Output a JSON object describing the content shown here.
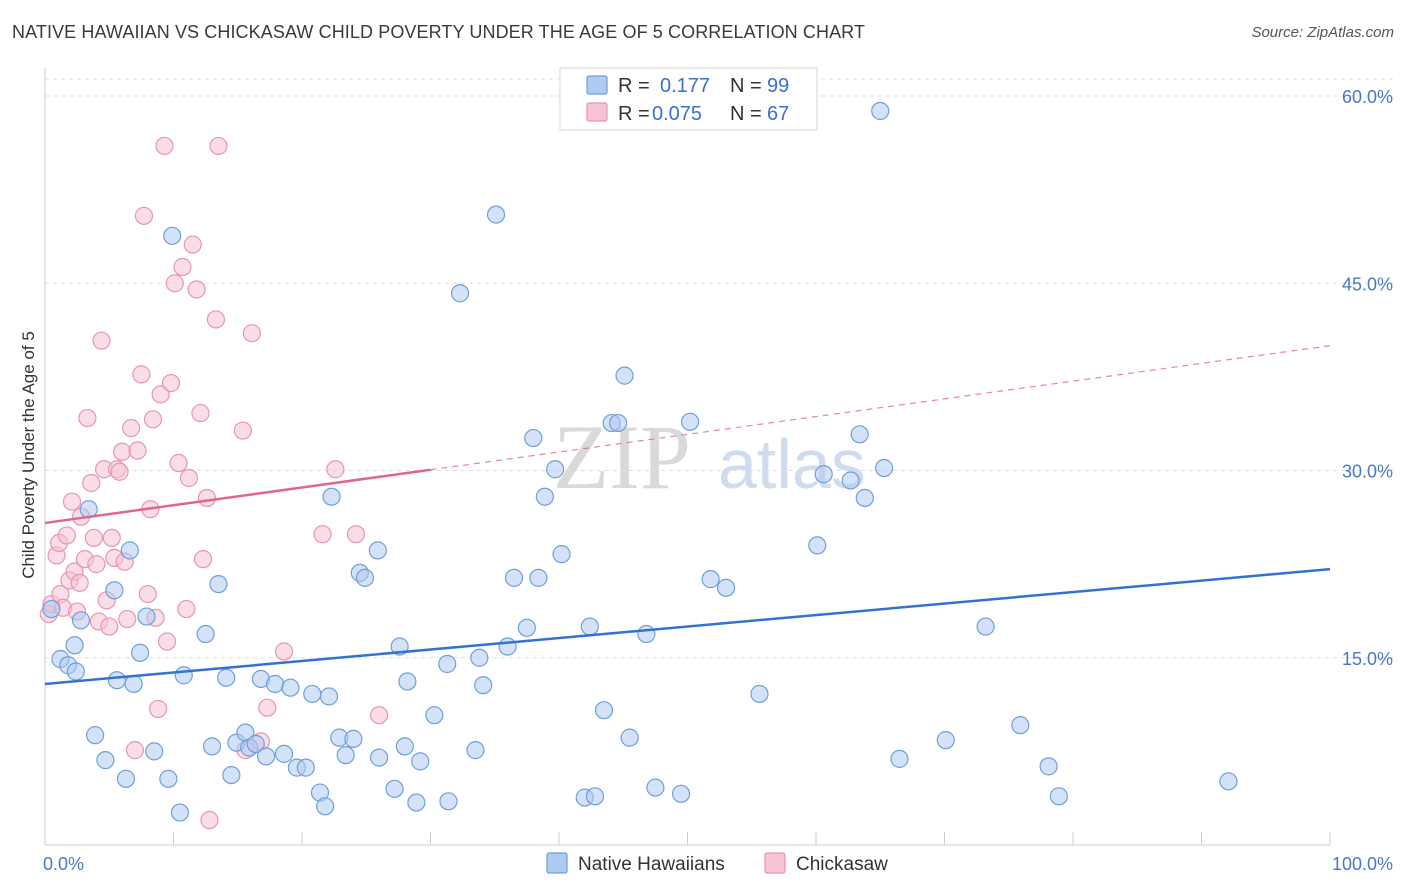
{
  "title": "NATIVE HAWAIIAN VS CHICKASAW CHILD POVERTY UNDER THE AGE OF 5 CORRELATION CHART",
  "source": "Source: ZipAtlas.com",
  "watermark": {
    "zip": "ZIP",
    "atlas": "atlas"
  },
  "colors": {
    "blue_fill": "#aecbf0",
    "blue_stroke": "#6f9fdb",
    "blue_line": "#3472d0",
    "pink_fill": "#f6c3d3",
    "pink_stroke": "#e995b0",
    "pink_line": "#e0668f",
    "grid": "#dddddd",
    "tick": "#4a78c8"
  },
  "legend": {
    "rows": [
      {
        "r_label": "R =",
        "r_value": "0.177",
        "n_label": "N =",
        "n_value": "99"
      },
      {
        "r_label": "R =",
        "r_value": "0.075",
        "n_label": "N =",
        "n_value": "67"
      }
    ]
  },
  "chart_data": {
    "type": "scatter",
    "title": "NATIVE HAWAIIAN VS CHICKASAW CHILD POVERTY UNDER THE AGE OF 5 CORRELATION CHART",
    "xlabel": "",
    "ylabel": "Child Poverty Under the Age of 5",
    "xlim": [
      0,
      100
    ],
    "ylim": [
      0,
      60
    ],
    "x_tick_labels": [
      "0.0%",
      "100.0%"
    ],
    "y_ticks": [
      15,
      30,
      45,
      60
    ],
    "y_tick_labels": [
      "15.0%",
      "30.0%",
      "45.0%",
      "60.0%"
    ],
    "legend_position": "top-center",
    "series": [
      {
        "name": "Native Hawaiians",
        "r": 0.177,
        "n": 99,
        "trend": {
          "x0": 0,
          "y0": 12.9,
          "x1": 100,
          "y1": 22.1,
          "dashed_from": null
        },
        "points": [
          [
            0.5,
            18.9
          ],
          [
            1.2,
            14.9
          ],
          [
            1.8,
            14.4
          ],
          [
            2.4,
            13.9
          ],
          [
            2.3,
            16.0
          ],
          [
            2.8,
            18.0
          ],
          [
            3.4,
            26.9
          ],
          [
            3.9,
            8.8
          ],
          [
            4.7,
            6.8
          ],
          [
            5.4,
            20.4
          ],
          [
            5.6,
            13.2
          ],
          [
            6.3,
            5.3
          ],
          [
            6.6,
            23.6
          ],
          [
            6.9,
            12.9
          ],
          [
            7.4,
            15.4
          ],
          [
            7.9,
            18.3
          ],
          [
            8.5,
            7.5
          ],
          [
            9.6,
            5.3
          ],
          [
            9.9,
            48.8
          ],
          [
            10.5,
            2.6
          ],
          [
            10.8,
            13.6
          ],
          [
            12.5,
            16.9
          ],
          [
            13.0,
            7.9
          ],
          [
            13.5,
            20.9
          ],
          [
            14.1,
            13.4
          ],
          [
            14.5,
            5.6
          ],
          [
            14.9,
            8.2
          ],
          [
            15.6,
            9.0
          ],
          [
            15.9,
            7.8
          ],
          [
            16.4,
            8.1
          ],
          [
            16.8,
            13.3
          ],
          [
            17.2,
            7.1
          ],
          [
            17.9,
            12.9
          ],
          [
            18.6,
            7.3
          ],
          [
            19.1,
            12.6
          ],
          [
            19.6,
            6.2
          ],
          [
            20.3,
            6.2
          ],
          [
            20.8,
            12.1
          ],
          [
            21.4,
            4.2
          ],
          [
            21.8,
            3.1
          ],
          [
            22.1,
            11.9
          ],
          [
            22.3,
            27.9
          ],
          [
            22.9,
            8.6
          ],
          [
            23.4,
            7.2
          ],
          [
            24.0,
            8.5
          ],
          [
            24.5,
            21.8
          ],
          [
            24.9,
            21.4
          ],
          [
            25.9,
            23.6
          ],
          [
            26.0,
            7.0
          ],
          [
            27.2,
            4.5
          ],
          [
            27.6,
            15.9
          ],
          [
            28.0,
            7.9
          ],
          [
            28.2,
            13.1
          ],
          [
            28.9,
            3.4
          ],
          [
            29.2,
            6.7
          ],
          [
            30.3,
            10.4
          ],
          [
            31.4,
            3.5
          ],
          [
            31.3,
            14.5
          ],
          [
            32.3,
            44.2
          ],
          [
            33.5,
            7.6
          ],
          [
            33.8,
            15.0
          ],
          [
            34.1,
            12.8
          ],
          [
            35.1,
            50.5
          ],
          [
            36.0,
            15.9
          ],
          [
            36.5,
            21.4
          ],
          [
            37.5,
            17.4
          ],
          [
            38.0,
            32.6
          ],
          [
            38.4,
            21.4
          ],
          [
            38.9,
            27.9
          ],
          [
            39.7,
            30.1
          ],
          [
            40.2,
            23.3
          ],
          [
            42.0,
            3.8
          ],
          [
            42.4,
            17.5
          ],
          [
            42.8,
            3.9
          ],
          [
            43.5,
            10.8
          ],
          [
            44.1,
            33.8
          ],
          [
            44.6,
            33.8
          ],
          [
            45.1,
            37.6
          ],
          [
            45.5,
            8.6
          ],
          [
            46.8,
            16.9
          ],
          [
            47.5,
            4.6
          ],
          [
            49.5,
            4.1
          ],
          [
            50.2,
            33.9
          ],
          [
            51.8,
            21.3
          ],
          [
            53.0,
            20.6
          ],
          [
            55.6,
            12.1
          ],
          [
            60.1,
            24.0
          ],
          [
            60.6,
            29.7
          ],
          [
            62.7,
            29.2
          ],
          [
            63.4,
            32.9
          ],
          [
            63.8,
            27.8
          ],
          [
            65.3,
            30.2
          ],
          [
            66.5,
            6.9
          ],
          [
            70.1,
            8.4
          ],
          [
            73.2,
            17.5
          ],
          [
            75.9,
            9.6
          ],
          [
            78.1,
            6.3
          ],
          [
            78.9,
            3.9
          ],
          [
            92.1,
            5.1
          ],
          [
            65.0,
            58.8
          ]
        ]
      },
      {
        "name": "Chickasaw",
        "r": 0.075,
        "n": 67,
        "trend": {
          "x0": 0,
          "y0": 25.8,
          "x1": 100,
          "y1": 40.0,
          "dashed_from": 30
        },
        "points": [
          [
            0.3,
            18.5
          ],
          [
            0.5,
            19.3
          ],
          [
            0.9,
            23.2
          ],
          [
            1.1,
            24.2
          ],
          [
            1.2,
            20.1
          ],
          [
            1.4,
            19.0
          ],
          [
            1.7,
            24.8
          ],
          [
            1.9,
            21.2
          ],
          [
            2.1,
            27.5
          ],
          [
            2.3,
            21.9
          ],
          [
            2.5,
            18.7
          ],
          [
            2.7,
            21.0
          ],
          [
            2.8,
            26.3
          ],
          [
            3.1,
            22.9
          ],
          [
            3.3,
            34.2
          ],
          [
            3.6,
            29.0
          ],
          [
            3.8,
            24.6
          ],
          [
            4.0,
            22.5
          ],
          [
            4.2,
            17.9
          ],
          [
            4.4,
            40.4
          ],
          [
            4.6,
            30.1
          ],
          [
            4.8,
            19.6
          ],
          [
            5.0,
            17.5
          ],
          [
            5.2,
            24.6
          ],
          [
            5.4,
            23.0
          ],
          [
            5.6,
            30.1
          ],
          [
            5.8,
            29.9
          ],
          [
            6.0,
            31.5
          ],
          [
            6.2,
            22.7
          ],
          [
            6.4,
            18.1
          ],
          [
            6.7,
            33.4
          ],
          [
            7.0,
            7.6
          ],
          [
            7.2,
            31.6
          ],
          [
            7.5,
            37.7
          ],
          [
            7.7,
            50.4
          ],
          [
            8.0,
            20.1
          ],
          [
            8.2,
            26.9
          ],
          [
            8.4,
            34.1
          ],
          [
            8.6,
            18.2
          ],
          [
            8.8,
            10.9
          ],
          [
            9.0,
            36.1
          ],
          [
            9.3,
            56.0
          ],
          [
            9.5,
            16.3
          ],
          [
            9.8,
            37.0
          ],
          [
            10.1,
            45.0
          ],
          [
            10.4,
            30.6
          ],
          [
            10.7,
            46.3
          ],
          [
            11.0,
            18.9
          ],
          [
            11.2,
            29.4
          ],
          [
            11.5,
            48.1
          ],
          [
            11.8,
            44.5
          ],
          [
            12.1,
            34.6
          ],
          [
            12.3,
            22.9
          ],
          [
            12.6,
            27.8
          ],
          [
            12.8,
            2.0
          ],
          [
            13.3,
            42.1
          ],
          [
            13.5,
            56.0
          ],
          [
            15.4,
            33.2
          ],
          [
            15.6,
            7.6
          ],
          [
            16.1,
            41.0
          ],
          [
            16.8,
            8.3
          ],
          [
            17.3,
            11.0
          ],
          [
            18.6,
            15.5
          ],
          [
            21.6,
            24.9
          ],
          [
            22.6,
            30.1
          ],
          [
            24.2,
            24.9
          ],
          [
            26.0,
            10.4
          ]
        ]
      }
    ]
  }
}
